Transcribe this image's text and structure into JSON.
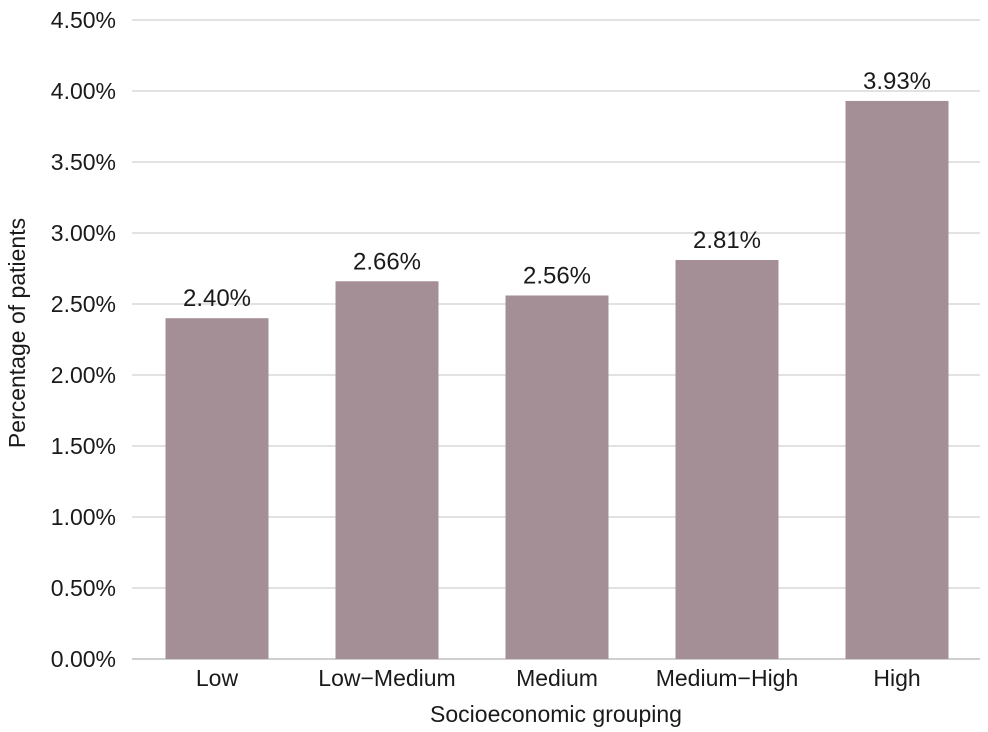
{
  "chart_data": {
    "type": "bar",
    "title": "",
    "xlabel": "Socioeconomic grouping",
    "ylabel": "Percentage of patients",
    "categories": [
      "Low",
      "Low−Medium",
      "Medium",
      "Medium−High",
      "High"
    ],
    "values": [
      2.4,
      2.66,
      2.56,
      2.81,
      3.93
    ],
    "data_labels": [
      "2.40%",
      "2.66%",
      "2.56%",
      "2.81%",
      "3.93%"
    ],
    "ylim": [
      0,
      4.5
    ],
    "yticks": [
      0,
      0.5,
      1.0,
      1.5,
      2.0,
      2.5,
      3.0,
      3.5,
      4.0,
      4.5
    ],
    "ytick_labels": [
      "0.00%",
      "0.50%",
      "1.00%",
      "1.50%",
      "2.00%",
      "2.50%",
      "3.00%",
      "3.50%",
      "4.00%",
      "4.50%"
    ],
    "grid": true,
    "legend": "none",
    "bar_color": "#a58f96",
    "grid_color": "#d9d9d9"
  }
}
